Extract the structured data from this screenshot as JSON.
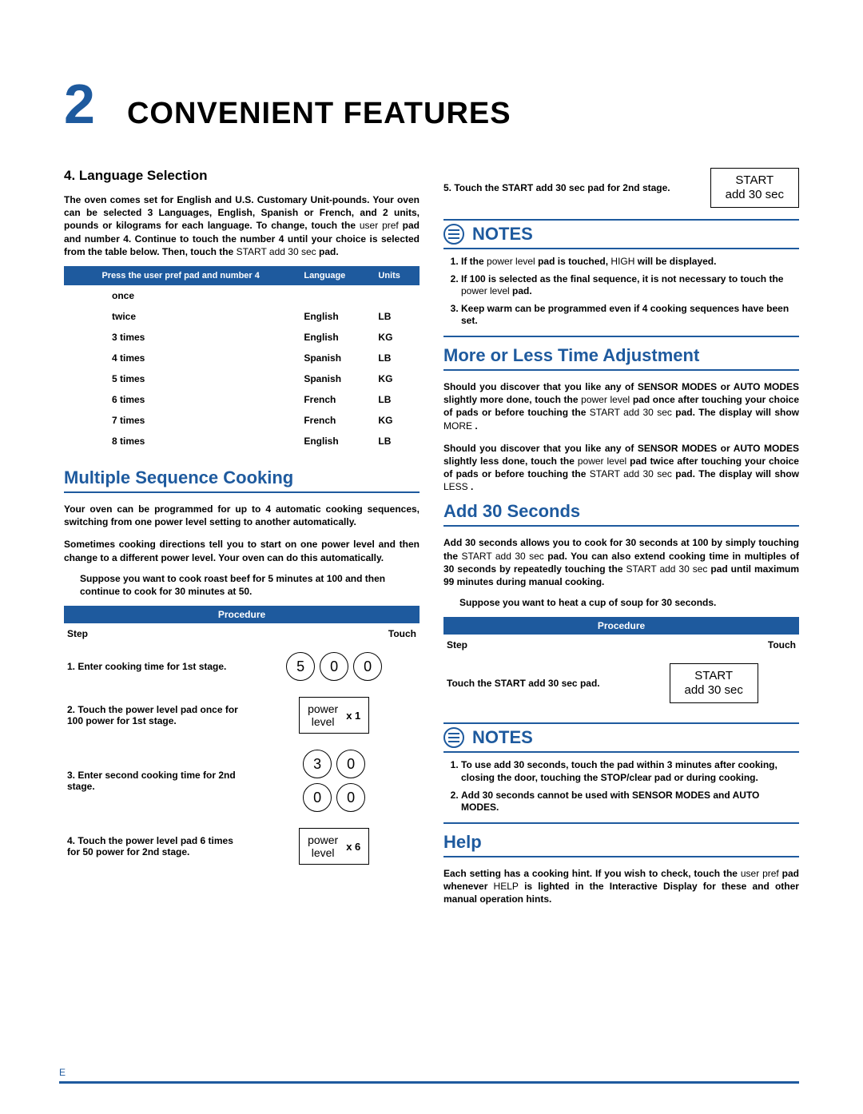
{
  "chapter": {
    "number": "2",
    "title": "CONVENIENT FEATURES"
  },
  "lang_sel": {
    "heading": "4. Language Selection",
    "intro_a": "The oven comes set for English and U.S. Customary Unit-pounds. Your oven can be selected 3 Languages, English, Spanish or French, and 2 units, pounds or kilograms for each language. To change, touch the",
    "intro_b": " pad and number 4. Continue to touch the number 4 until your choice is selected from the table below. Then, touch the",
    "intro_c": " pad.",
    "user_pref": "user pref",
    "start_pad": "START add 30 sec",
    "table": {
      "col1": "Press the user pref pad and number 4",
      "col2": "Language",
      "col3": "Units",
      "rows": [
        {
          "times": "once",
          "lang": "",
          "unit": ""
        },
        {
          "times": "twice",
          "lang": "English",
          "unit": "LB"
        },
        {
          "times": "3 times",
          "lang": "English",
          "unit": "KG"
        },
        {
          "times": "4 times",
          "lang": "Spanish",
          "unit": "LB"
        },
        {
          "times": "5 times",
          "lang": "Spanish",
          "unit": "KG"
        },
        {
          "times": "6 times",
          "lang": "French",
          "unit": "LB"
        },
        {
          "times": "7 times",
          "lang": "French",
          "unit": "KG"
        },
        {
          "times": "8 times",
          "lang": "English",
          "unit": "LB"
        }
      ]
    }
  },
  "mult_seq": {
    "title": "Multiple Sequence Cooking",
    "p1": "Your oven can be programmed for up to 4 automatic cooking sequences, switching from one power level setting to another automatically.",
    "p2": "Sometimes cooking directions tell you to start on one power level and then change to a different power level. Your oven can do this automatically.",
    "example": "Suppose you want to cook roast beef for 5 minutes at 100 and then continue to cook for 30 minutes at 50.",
    "proc_header": "Procedure",
    "step_label": "Step",
    "touch_label": "Touch",
    "steps": {
      "s1": "1.  Enter cooking time for 1st stage.",
      "s2a": "2.  Touch the",
      "s2b": " pad once for 100 power for 1st stage.",
      "s3": "3.  Enter second cooking time for 2nd stage.",
      "s4a": "4.  Touch the",
      "s4b": " pad 6 times for 50 power for 2nd stage.",
      "s5a": "5.  Touch the",
      "s5b": " pad for 2nd stage."
    },
    "power_level": "power level",
    "power_btn": "power\nlevel",
    "x1": "x 1",
    "x6": "x 6",
    "keys1": [
      "5",
      "0",
      "0"
    ],
    "keys2": [
      "3",
      "0",
      "0",
      "0"
    ],
    "start_pad": "START add 30 sec",
    "start_btn1": "START",
    "start_btn2": "add 30 sec"
  },
  "notes1": {
    "label": "NOTES",
    "items": [
      {
        "a": "If the",
        "b": " pad is touched,",
        "c": " will be displayed.",
        "pwr": "power level",
        "high": "HIGH"
      },
      {
        "a": "If 100 is selected as the final sequence, it is not necessary to touch the",
        "b": " pad.",
        "pwr": "power level"
      },
      {
        "a": "Keep warm can be programmed even if 4 cooking sequences have been set."
      }
    ]
  },
  "more_less": {
    "title": "More or Less Time Adjustment",
    "p1a": "Should you discover that you like any of SENSOR MODES or AUTO MODES slightly more done, touch the",
    "p1b": " pad once after touching your choice of pads or before touching the",
    "p1c": " pad. The display will show",
    "p1d": ".",
    "p2a": "Should you discover that you like any of SENSOR MODES or AUTO MODES slightly less done, touch the",
    "p2b": " pad twice after touching your choice of pads or before touching the",
    "p2c": " pad. The display will show",
    "p2d": ".",
    "pwr": "power level",
    "start_pad": "START add 30 sec",
    "more": "MORE",
    "less": "LESS"
  },
  "add30": {
    "title": "Add 30 Seconds",
    "p_a": "Add 30 seconds allows you to cook for 30 seconds at 100 by simply touching the",
    "p_b": " pad. You can also extend cooking time in multiples of 30 seconds by repeatedly touching the",
    "p_c": " pad until maximum 99 minutes during manual cooking.",
    "start_pad": "START add 30 sec",
    "example": "Suppose you want to heat a cup of soup for 30 seconds.",
    "proc_header": "Procedure",
    "step_label": "Step",
    "touch_label": "Touch",
    "step1a": "Touch the",
    "step1b": " pad.",
    "step1pad": "START add 30 sec",
    "start_btn1": "START",
    "start_btn2": "add 30 sec"
  },
  "notes2": {
    "label": "NOTES",
    "items": [
      "To use add 30 seconds, touch the pad within 3 minutes after cooking, closing the door, touching the STOP/clear pad or during cooking.",
      "Add 30 seconds cannot be used with SENSOR MODES and AUTO MODES."
    ]
  },
  "help": {
    "title": "Help",
    "p_a": "Each setting has a cooking hint. If you wish to check, touch the",
    "p_b": " pad whenever",
    "p_c": " is lighted in the Interactive Display for these and other manual operation hints.",
    "user_pref": "user pref",
    "help_word": "HELP"
  },
  "footer": {
    "page": "E"
  }
}
